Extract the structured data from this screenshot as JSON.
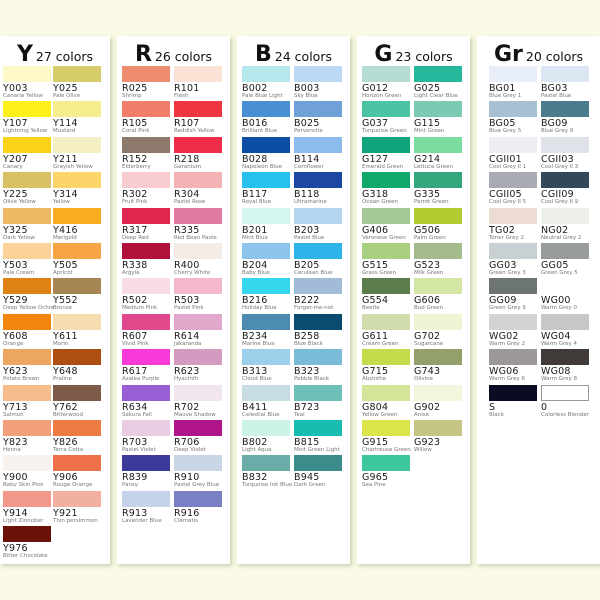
{
  "groups": [
    {
      "letter": "Y",
      "count_label": "27 colors",
      "colors": [
        [
          "Y003",
          "Canaria Yellow",
          "#fdfac8"
        ],
        [
          "Y025",
          "Pale Olive",
          "#d6cc6a"
        ],
        [
          "Y107",
          "Lightning Yellow",
          "#fdef1a"
        ],
        [
          "Y114",
          "Mustard",
          "#f6ee8e"
        ],
        [
          "Y207",
          "Canary",
          "#fbd21a"
        ],
        [
          "Y211",
          "Grayish Yellow",
          "#f4f0c4"
        ],
        [
          "Y225",
          "Olive Yellow",
          "#d9c064"
        ],
        [
          "Y314",
          "Yellow",
          "#fbd46a"
        ],
        [
          "Y325",
          "Dark Yellow",
          "#eeb865"
        ],
        [
          "Y416",
          "Marigold",
          "#f9ab22"
        ],
        [
          "Y503",
          "Pale Cream",
          "#fbd29a"
        ],
        [
          "Y505",
          "Apricot",
          "#f7a444"
        ],
        [
          "Y529",
          "Deep Yellow Ochre",
          "#de8216"
        ],
        [
          "Y552",
          "Bronze",
          "#a68652"
        ],
        [
          "Y608",
          "Orange",
          "#f4860e"
        ],
        [
          "Y611",
          "Morin",
          "#f6ddb0"
        ],
        [
          "Y623",
          "Potato Brown",
          "#eba660"
        ],
        [
          "Y648",
          "Praline",
          "#ad4f10"
        ],
        [
          "Y713",
          "Salmon",
          "#f7bc8c"
        ],
        [
          "Y762",
          "Bitterwood",
          "#7d5b48"
        ],
        [
          "Y823",
          "Henna",
          "#f2a07c"
        ],
        [
          "Y826",
          "Terra Cotta",
          "#ee7b42"
        ],
        [
          "Y900",
          "Baby Skin Pink",
          "#f8f2ee"
        ],
        [
          "Y906",
          "Rouge Orange",
          "#ee7048"
        ],
        [
          "Y914",
          "Light Zinnober",
          "#f2988a"
        ],
        [
          "Y921",
          "Thin persimmon",
          "#f1b0a2"
        ],
        [
          "Y976",
          "Bitter Chocolate",
          "#6a1208"
        ]
      ]
    },
    {
      "letter": "R",
      "count_label": "26 colors",
      "colors": [
        [
          "R025",
          "Shrimp",
          "#ee8c70"
        ],
        [
          "R101",
          "Flesh",
          "#fce2d4"
        ],
        [
          "R105",
          "Coral Pink",
          "#f07e6a"
        ],
        [
          "R107",
          "Reddish Yellow",
          "#ee3540"
        ],
        [
          "R152",
          "Elderberry",
          "#8e7a6c"
        ],
        [
          "R218",
          "Geranium",
          "#ee2e48"
        ],
        [
          "R302",
          "Fruit Pink",
          "#f8ccd0"
        ],
        [
          "R304",
          "Pastel Rose",
          "#f4b2b4"
        ],
        [
          "R317",
          "Deep Red",
          "#e0254e"
        ],
        [
          "R335",
          "Red Bean Paste",
          "#e07aa0"
        ],
        [
          "R338",
          "Argyle",
          "#b0103a"
        ],
        [
          "R400",
          "Cherry White",
          "#f3ece6"
        ],
        [
          "R502",
          "Medium Pink",
          "#f9dce4"
        ],
        [
          "R503",
          "Pastel Pink",
          "#f4b8cc"
        ],
        [
          "R607",
          "Vivid Pink",
          "#e04a8c"
        ],
        [
          "R614",
          "Jakaranda",
          "#e2a8cc"
        ],
        [
          "R617",
          "Azalea Purple",
          "#f83ad8"
        ],
        [
          "R623",
          "Hyacinth",
          "#d49ac0"
        ],
        [
          "R634",
          "Sakura Fall",
          "#9a5ed4"
        ],
        [
          "R702",
          "Mauve Shadow",
          "#f2e6ee"
        ],
        [
          "R703",
          "Pastel Violet",
          "#e8cce2"
        ],
        [
          "R706",
          "Deep Violet",
          "#b0158a"
        ],
        [
          "R839",
          "Pansy",
          "#3c3a9a"
        ],
        [
          "R910",
          "Pastel Grey Blue",
          "#c9d6e6"
        ],
        [
          "R913",
          "Lavender Blue",
          "#c4d2ea"
        ],
        [
          "R916",
          "Clematis",
          "#7a80c4"
        ]
      ]
    },
    {
      "letter": "B",
      "count_label": "24 colors",
      "colors": [
        [
          "B002",
          "Pale Blue Light",
          "#b4e8ec"
        ],
        [
          "B003",
          "Sky Blue",
          "#bcd8f4"
        ],
        [
          "B016",
          "Brilliant Blue",
          "#4a8ed4"
        ],
        [
          "B025",
          "Pervenche",
          "#70a0d8"
        ],
        [
          "B028",
          "Napoleon Blue",
          "#0c4ea4"
        ],
        [
          "B114",
          "Cornflower",
          "#8cbcec"
        ],
        [
          "B117",
          "Royal Blue",
          "#28c0ec"
        ],
        [
          "B118",
          "Ultramarine",
          "#1c48a4"
        ],
        [
          "B201",
          "Mint Blue",
          "#d4f6ee"
        ],
        [
          "B203",
          "Pastel Blue",
          "#b4d4f0"
        ],
        [
          "B204",
          "Baby Blue",
          "#8cc4ec"
        ],
        [
          "B205",
          "Cerulean Blue",
          "#2cb4e8"
        ],
        [
          "B216",
          "Holiday Blue",
          "#36d6ee"
        ],
        [
          "B222",
          "Forget-me-not",
          "#a2bcd8"
        ],
        [
          "B234",
          "Marine Blue",
          "#4c8cb0"
        ],
        [
          "B258",
          "Blue Black",
          "#0a4c70"
        ],
        [
          "B313",
          "Cloud Blue",
          "#9cd0ea"
        ],
        [
          "B323",
          "Pebble Black",
          "#7abcd8"
        ],
        [
          "B411",
          "Celestial Blue",
          "#c8dce4"
        ],
        [
          "B723",
          "Teal",
          "#6cc0b8"
        ],
        [
          "B802",
          "Light Aqua",
          "#ccf4e6"
        ],
        [
          "B815",
          "Mint Green Light",
          "#18bcb0"
        ],
        [
          "B832",
          "Turquoise Ink Blue",
          "#6aaca8"
        ],
        [
          "B945",
          "Dark Green",
          "#3c8c8c"
        ]
      ]
    },
    {
      "letter": "G",
      "count_label": "23 colors",
      "colors": [
        [
          "G012",
          "Horizon Green",
          "#b4dcd4"
        ],
        [
          "G025",
          "Light Clear Blue",
          "#26b89c"
        ],
        [
          "G037",
          "Turquoise Green",
          "#4cc4a4"
        ],
        [
          "G115",
          "Mint Green",
          "#7ccab4"
        ],
        [
          "G127",
          "Emerald Green",
          "#10a47c"
        ],
        [
          "G214",
          "Lettuce Green",
          "#7cdca0"
        ],
        [
          "G318",
          "Ocean Green",
          "#12a86c"
        ],
        [
          "G335",
          "Parrot Green",
          "#34a87c"
        ],
        [
          "G406",
          "Veronese Green",
          "#a4c898"
        ],
        [
          "G506",
          "Palm Green",
          "#b0cc30"
        ],
        [
          "G515",
          "Grass Green",
          "#a8d080"
        ],
        [
          "G523",
          "Milk Green",
          "#a4bc8c"
        ],
        [
          "G554",
          "Beetle",
          "#5c7c4c"
        ],
        [
          "G606",
          "Bud Green",
          "#d4e6a4"
        ],
        [
          "G611",
          "Cream Green",
          "#d0dcac"
        ],
        [
          "G702",
          "Sugarcane",
          "#eef4d4"
        ],
        [
          "G715",
          "Absinthe",
          "#c4dc4c"
        ],
        [
          "G743",
          "Olivine",
          "#94a06c"
        ],
        [
          "G804",
          "Yellow Green",
          "#d4e498"
        ],
        [
          "G902",
          "Anise",
          "#f2f6dc"
        ],
        [
          "G915",
          "Chartreuse Green",
          "#dce44c"
        ],
        [
          "G923",
          "Willow",
          "#c4c484"
        ],
        [
          "G965",
          "Sea Pine",
          "#3cc89c"
        ]
      ]
    },
    {
      "letter": "Gr",
      "count_label": "20 colors",
      "colors": [
        [
          "BG01",
          "Blue Grey 1",
          "#e8eef8"
        ],
        [
          "BG03",
          "Pastel Blue",
          "#dbe6f2"
        ],
        [
          "BG05",
          "Blue Grey 5",
          "#a8c0d4"
        ],
        [
          "BG09",
          "Blue Grey 9",
          "#4c7c8c"
        ],
        [
          "CGII01",
          "Cool Grey II 1",
          "#eeeef2"
        ],
        [
          "CGII03",
          "Cool Grey II 3",
          "#e0e2ea"
        ],
        [
          "CGII05",
          "Cool Grey II 5",
          "#a8aab4"
        ],
        [
          "CGII09",
          "Cool Grey II 9",
          "#34485c"
        ],
        [
          "TG02",
          "Toner Grey 2",
          "#ecdcd4"
        ],
        [
          "NG02",
          "Neutral Grey 2",
          "#eeeeea"
        ],
        [
          "GG03",
          "Green Grey 3",
          "#c8d0d4"
        ],
        [
          "GG05",
          "Green Grey 5",
          "#989c9c"
        ],
        [
          "GG09",
          "Green Grey 9",
          "#6c7474"
        ],
        [
          "WG00",
          "Warm Grey 0",
          "#ffffff"
        ],
        [
          "WG02",
          "Warm Grey 2",
          "#d4d2d2"
        ],
        [
          "WG04",
          "Warm Grey 4",
          "#c8c6c6"
        ],
        [
          "WG06",
          "Warm Grey 6",
          "#9c9898"
        ],
        [
          "WG08",
          "Warm Grey 8",
          "#403a38"
        ],
        [
          "S",
          "Black",
          "#0a0c24"
        ],
        [
          "0",
          "Colorless Blender",
          "#ffffff"
        ]
      ]
    }
  ]
}
